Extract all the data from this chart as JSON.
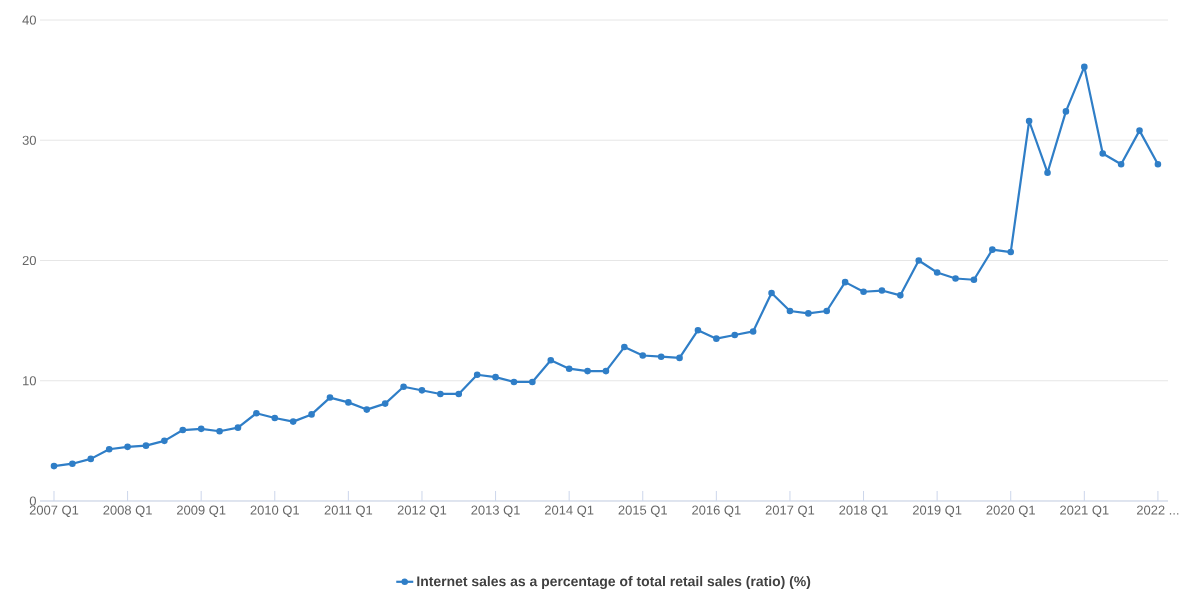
{
  "chart_data": {
    "type": "line",
    "categories": [
      "2007 Q1",
      null,
      null,
      null,
      "2008 Q1",
      null,
      null,
      null,
      "2009 Q1",
      null,
      null,
      null,
      "2010 Q1",
      null,
      null,
      null,
      "2011 Q1",
      null,
      null,
      null,
      "2012 Q1",
      null,
      null,
      null,
      "2013 Q1",
      null,
      null,
      null,
      "2014 Q1",
      null,
      null,
      null,
      "2015 Q1",
      null,
      null,
      null,
      "2016 Q1",
      null,
      null,
      null,
      "2017 Q1",
      null,
      null,
      null,
      "2018 Q1",
      null,
      null,
      null,
      "2019 Q1",
      null,
      null,
      null,
      "2020 Q1",
      null,
      null,
      null,
      "2021 Q1",
      null,
      null,
      null,
      "2022 ..."
    ],
    "series": [
      {
        "name": "Internet sales as a percentage of total retail sales (ratio) (%)",
        "color": "#2f7ec7",
        "values": [
          2.9,
          3.1,
          3.5,
          4.3,
          4.5,
          4.6,
          5.0,
          5.9,
          6.0,
          5.8,
          6.1,
          7.3,
          6.9,
          6.6,
          7.2,
          8.6,
          8.2,
          7.6,
          8.1,
          9.5,
          9.2,
          8.9,
          8.9,
          10.5,
          10.3,
          9.9,
          9.9,
          11.7,
          11.0,
          10.8,
          10.8,
          12.8,
          12.1,
          12.0,
          11.9,
          14.2,
          13.5,
          13.8,
          14.1,
          17.3,
          15.8,
          15.6,
          15.8,
          18.2,
          17.4,
          17.5,
          17.1,
          20.0,
          19.0,
          18.5,
          18.4,
          20.9,
          20.7,
          31.6,
          27.3,
          32.4,
          36.1,
          28.9,
          28.0,
          30.8,
          28.0
        ]
      }
    ],
    "ylim": [
      0,
      40
    ],
    "yticks": [
      0,
      10,
      20,
      30,
      40
    ],
    "grid": "y",
    "legend": "bottom",
    "marker": "circle",
    "line_style": "solid"
  }
}
